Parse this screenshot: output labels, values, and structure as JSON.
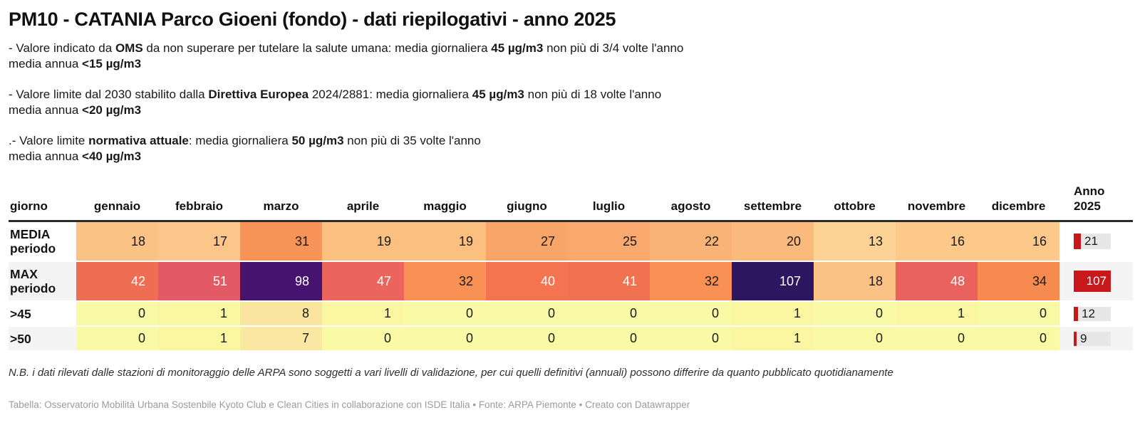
{
  "title": "PM10 - CATANIA Parco Gioeni (fondo) - dati riepilogativi - anno 2025",
  "notes": [
    {
      "lines": [
        [
          {
            "t": "- Valore indicato da "
          },
          {
            "t": "OMS",
            "b": 1
          },
          {
            "t": " da non superare per tutelare la salute umana: media giornaliera "
          },
          {
            "t": "45 µg/m3",
            "b": 1
          },
          {
            "t": " non più di 3/4 volte l'anno"
          }
        ],
        [
          {
            "t": "media annua "
          },
          {
            "t": "<15 µg/m3",
            "b": 1
          }
        ]
      ]
    },
    {
      "lines": [
        [
          {
            "t": "- Valore limite dal 2030 stabilito dalla "
          },
          {
            "t": "Direttiva Europea",
            "b": 1
          },
          {
            "t": " 2024/2881: media giornaliera "
          },
          {
            "t": "45 µg/m3",
            "b": 1
          },
          {
            "t": " non più di 18 volte l'anno"
          }
        ],
        [
          {
            "t": "media annua "
          },
          {
            "t": "<20 µg/m3",
            "b": 1
          }
        ]
      ]
    },
    {
      "lines": [
        [
          {
            "t": ".- Valore limite "
          },
          {
            "t": "normativa attuale",
            "b": 1
          },
          {
            "t": ": media giornaliera "
          },
          {
            "t": "50 µg/m3",
            "b": 1
          },
          {
            "t": " non più di 35 volte l'anno"
          }
        ],
        [
          {
            "t": "media annua "
          },
          {
            "t": "<40 µg/m3",
            "b": 1
          }
        ]
      ]
    }
  ],
  "colors": {
    "bar_red": "#c7191c",
    "bar_track": "#e7e7e7",
    "zebra_row": "#f4f4f4",
    "header_rule": "#2b2b2b",
    "white_text": "#ffffff",
    "dark_text": "#1a1a1a"
  },
  "chart_data": {
    "type": "table",
    "title": "PM10 - CATANIA Parco Gioeni (fondo) - dati riepilogativi - anno 2025",
    "corner": "giorno",
    "categories": [
      "gennaio",
      "febbraio",
      "marzo",
      "aprile",
      "maggio",
      "giugno",
      "luglio",
      "agosto",
      "settembre",
      "ottobre",
      "novembre",
      "dicembre"
    ],
    "year_column": "Anno\n2025",
    "year_axis_max": 107,
    "white_text_threshold": 40,
    "series": [
      {
        "name": "MEDIA periodo",
        "label_lines": [
          "MEDIA",
          "periodo"
        ],
        "size": "big",
        "bar": "big",
        "values": [
          18,
          17,
          31,
          19,
          19,
          27,
          25,
          22,
          20,
          13,
          16,
          16
        ],
        "year": 21,
        "colors": [
          "#fbc285",
          "#fcc68a",
          "#f89457",
          "#fbbf80",
          "#fbbf80",
          "#f9a469",
          "#f9a96d",
          "#fab377",
          "#fbba7d",
          "#fdd395",
          "#fcc98b",
          "#fcc98b"
        ]
      },
      {
        "name": "MAX periodo",
        "label_lines": [
          "MAX",
          "periodo"
        ],
        "size": "big",
        "bar": "tall",
        "values": [
          42,
          51,
          98,
          47,
          32,
          40,
          41,
          32,
          107,
          18,
          48,
          34
        ],
        "year": 107,
        "colors": [
          "#ef6e53",
          "#e45a64",
          "#46146e",
          "#eb655c",
          "#f89153",
          "#f3744f",
          "#f17250",
          "#f89153",
          "#2c165f",
          "#fbc285",
          "#e9625e",
          "#f78a4e"
        ]
      },
      {
        "name": ">45",
        "label_lines": [
          ">45"
        ],
        "size": "small",
        "bar": "small",
        "values": [
          0,
          1,
          8,
          1,
          0,
          0,
          0,
          0,
          1,
          0,
          1,
          0
        ],
        "year": 12,
        "colors": [
          "#fafaa6",
          "#faf6a2",
          "#fae5a0",
          "#faf6a2",
          "#fafaa6",
          "#fafaa6",
          "#fafaa6",
          "#fafaa6",
          "#faf6a2",
          "#fafaa6",
          "#faf6a2",
          "#fafaa6"
        ]
      },
      {
        "name": ">50",
        "label_lines": [
          ">50"
        ],
        "size": "small",
        "bar": "small",
        "values": [
          0,
          1,
          7,
          0,
          0,
          0,
          0,
          0,
          1,
          0,
          0,
          0
        ],
        "year": 9,
        "colors": [
          "#fafaa6",
          "#faf6a2",
          "#fae8a2",
          "#fafaa6",
          "#fafaa6",
          "#fafaa6",
          "#fafaa6",
          "#fafaa6",
          "#faf6a2",
          "#fafaa6",
          "#fafaa6",
          "#fafaa6"
        ]
      }
    ]
  },
  "footnote": "N.B. i dati rilevati dalle stazioni di monitoraggio delle ARPA sono soggetti a vari livelli di validazione, per cui quelli definitivi (annuali) possono differire da quanto pubblicato quotidianamente",
  "credit": "Tabella: Osservatorio Mobilità Urbana Sostenbile Kyoto Club e Clean Cities in collaborazione con ISDE Italia • Fonte: ARPA Piemonte • Creato con Datawrapper"
}
